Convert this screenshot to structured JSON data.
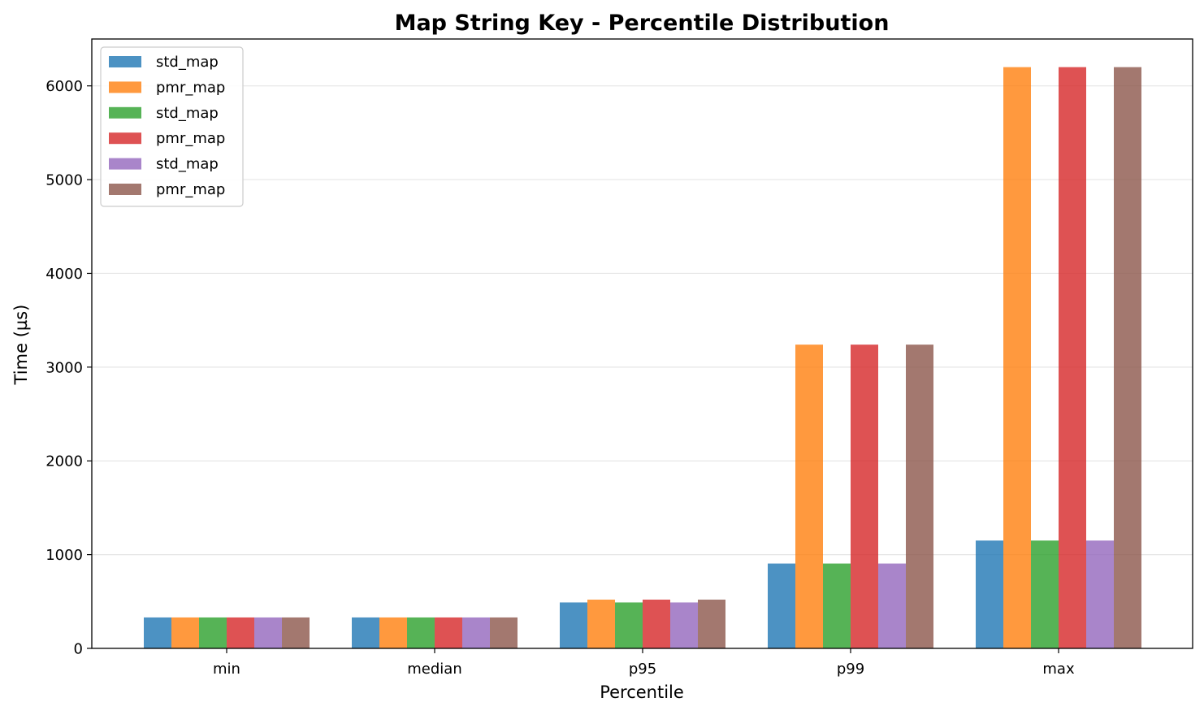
{
  "chart_data": {
    "type": "bar",
    "title": "Map String Key - Percentile Distribution",
    "xlabel": "Percentile",
    "ylabel": "Time (µs)",
    "categories": [
      "min",
      "median",
      "p95",
      "p99",
      "max"
    ],
    "ylim": [
      0,
      6500
    ],
    "yticks": [
      0,
      1000,
      2000,
      3000,
      4000,
      5000,
      6000
    ],
    "grid": "y",
    "legend_position": "top-left",
    "series": [
      {
        "name": "std_map",
        "color": "#1f77b4",
        "values": [
          330,
          330,
          490,
          905,
          1150
        ]
      },
      {
        "name": "pmr_map",
        "color": "#ff7f0e",
        "values": [
          330,
          330,
          520,
          3240,
          6200
        ]
      },
      {
        "name": "std_map",
        "color": "#2ca02c",
        "values": [
          330,
          330,
          490,
          905,
          1150
        ]
      },
      {
        "name": "pmr_map",
        "color": "#d62728",
        "values": [
          330,
          330,
          520,
          3240,
          6200
        ]
      },
      {
        "name": "std_map",
        "color": "#9467bd",
        "values": [
          330,
          330,
          490,
          905,
          1150
        ]
      },
      {
        "name": "pmr_map",
        "color": "#8c564b",
        "values": [
          330,
          330,
          520,
          3240,
          6200
        ]
      }
    ]
  }
}
